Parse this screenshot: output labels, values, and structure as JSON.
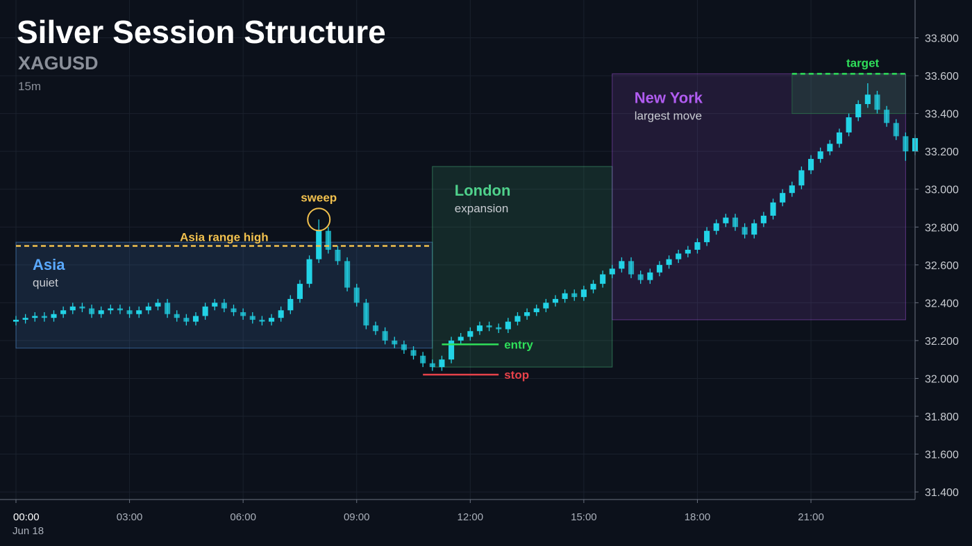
{
  "chart_data": {
    "type": "candlestick",
    "title": "Silver Session Structure",
    "symbol": "XAGUSD",
    "interval": "15m",
    "x_date_label": "Jun 18",
    "color": "#22d3e6",
    "grid": true,
    "xlim": [
      0,
      23.75
    ],
    "ylim": [
      31.36,
      34.0
    ],
    "xticks": [
      {
        "value": 0,
        "label": "00:00"
      },
      {
        "value": 3,
        "label": "03:00"
      },
      {
        "value": 6,
        "label": "06:00"
      },
      {
        "value": 9,
        "label": "09:00"
      },
      {
        "value": 12,
        "label": "12:00"
      },
      {
        "value": 15,
        "label": "15:00"
      },
      {
        "value": 18,
        "label": "18:00"
      },
      {
        "value": 21,
        "label": "21:00"
      }
    ],
    "yticks": [
      {
        "value": 31.4,
        "label": "31.400"
      },
      {
        "value": 31.6,
        "label": "31.600"
      },
      {
        "value": 31.8,
        "label": "31.800"
      },
      {
        "value": 32.0,
        "label": "32.000"
      },
      {
        "value": 32.2,
        "label": "32.200"
      },
      {
        "value": 32.4,
        "label": "32.400"
      },
      {
        "value": 32.6,
        "label": "32.600"
      },
      {
        "value": 32.8,
        "label": "32.800"
      },
      {
        "value": 33.0,
        "label": "33.000"
      },
      {
        "value": 33.2,
        "label": "33.200"
      },
      {
        "value": 33.4,
        "label": "33.400"
      },
      {
        "value": 33.6,
        "label": "33.600"
      },
      {
        "value": 33.8,
        "label": "33.800"
      }
    ],
    "x": [
      0,
      0.25,
      0.5,
      0.75,
      1,
      1.25,
      1.5,
      1.75,
      2,
      2.25,
      2.5,
      2.75,
      3,
      3.25,
      3.5,
      3.75,
      4,
      4.25,
      4.5,
      4.75,
      5,
      5.25,
      5.5,
      5.75,
      6,
      6.25,
      6.5,
      6.75,
      7,
      7.25,
      7.5,
      7.75,
      8,
      8.25,
      8.5,
      8.75,
      9,
      9.25,
      9.5,
      9.75,
      10,
      10.25,
      10.5,
      10.75,
      11,
      11.25,
      11.5,
      11.75,
      12,
      12.25,
      12.5,
      12.75,
      13,
      13.25,
      13.5,
      13.75,
      14,
      14.25,
      14.5,
      14.75,
      15,
      15.25,
      15.5,
      15.75,
      16,
      16.25,
      16.5,
      16.75,
      17,
      17.25,
      17.5,
      17.75,
      18,
      18.25,
      18.5,
      18.75,
      19,
      19.25,
      19.5,
      19.75,
      20,
      20.25,
      20.5,
      20.75,
      21,
      21.25,
      21.5,
      21.75,
      22,
      22.25,
      22.5,
      22.75,
      23,
      23.25,
      23.5,
      23.75
    ],
    "open": [
      32.3,
      32.31,
      32.32,
      32.33,
      32.32,
      32.34,
      32.36,
      32.38,
      32.37,
      32.34,
      32.36,
      32.37,
      32.36,
      32.34,
      32.36,
      32.38,
      32.4,
      32.34,
      32.32,
      32.3,
      32.33,
      32.38,
      32.4,
      32.37,
      32.35,
      32.33,
      32.31,
      32.3,
      32.32,
      32.36,
      32.42,
      32.5,
      32.63,
      32.78,
      32.68,
      32.62,
      32.48,
      32.4,
      32.28,
      32.25,
      32.2,
      32.18,
      32.15,
      32.12,
      32.08,
      32.06,
      32.1,
      32.2,
      32.22,
      32.25,
      32.28,
      32.27,
      32.26,
      32.3,
      32.33,
      32.35,
      32.37,
      32.4,
      32.42,
      32.45,
      32.43,
      32.47,
      32.5,
      32.55,
      32.58,
      32.62,
      32.55,
      32.52,
      32.56,
      32.6,
      32.63,
      32.66,
      32.68,
      32.72,
      32.78,
      32.82,
      32.85,
      32.8,
      32.76,
      32.82,
      32.86,
      32.93,
      32.98,
      33.02,
      33.1,
      33.16,
      33.2,
      33.24,
      33.3,
      33.38,
      33.45,
      33.5,
      33.42,
      33.35,
      33.28,
      33.2
    ],
    "high": [
      32.33,
      32.34,
      32.35,
      32.35,
      32.36,
      32.38,
      32.4,
      32.4,
      32.39,
      32.38,
      32.39,
      32.39,
      32.38,
      32.38,
      32.4,
      32.42,
      32.42,
      32.36,
      32.34,
      32.35,
      32.4,
      32.42,
      32.42,
      32.39,
      32.37,
      32.35,
      32.33,
      32.34,
      32.38,
      32.44,
      32.52,
      32.65,
      32.84,
      32.8,
      32.7,
      32.64,
      32.5,
      32.42,
      32.3,
      32.27,
      32.22,
      32.2,
      32.17,
      32.14,
      32.1,
      32.12,
      32.22,
      32.24,
      32.27,
      32.3,
      32.3,
      32.29,
      32.32,
      32.35,
      32.37,
      32.39,
      32.42,
      32.44,
      32.47,
      32.47,
      32.49,
      32.52,
      32.57,
      32.6,
      32.64,
      32.64,
      32.57,
      32.58,
      32.62,
      32.65,
      32.68,
      32.7,
      32.74,
      32.8,
      32.84,
      32.87,
      32.87,
      32.82,
      32.84,
      32.88,
      32.95,
      33.0,
      33.04,
      33.12,
      33.18,
      33.22,
      33.26,
      33.32,
      33.4,
      33.47,
      33.56,
      33.52,
      33.44,
      33.37,
      33.3,
      33.29
    ],
    "low": [
      32.28,
      32.29,
      32.3,
      32.3,
      32.3,
      32.32,
      32.34,
      32.35,
      32.32,
      32.32,
      32.34,
      32.34,
      32.32,
      32.32,
      32.34,
      32.36,
      32.32,
      32.3,
      32.28,
      32.28,
      32.31,
      32.36,
      32.35,
      32.33,
      32.31,
      32.29,
      32.28,
      32.28,
      32.3,
      32.34,
      32.4,
      32.48,
      32.61,
      32.66,
      32.6,
      32.46,
      32.38,
      32.26,
      32.23,
      32.18,
      32.16,
      32.13,
      32.1,
      32.06,
      32.04,
      32.04,
      32.08,
      32.18,
      32.2,
      32.23,
      32.25,
      32.24,
      32.24,
      32.28,
      32.31,
      32.33,
      32.35,
      32.38,
      32.4,
      32.41,
      32.41,
      32.45,
      32.48,
      32.53,
      32.56,
      32.53,
      32.5,
      32.5,
      32.54,
      32.58,
      32.61,
      32.64,
      32.66,
      32.7,
      32.76,
      32.8,
      32.78,
      32.74,
      32.74,
      32.8,
      32.84,
      32.91,
      32.96,
      33.0,
      33.08,
      33.14,
      33.18,
      33.22,
      33.28,
      33.36,
      33.43,
      33.4,
      33.33,
      33.26,
      33.15,
      33.18
    ],
    "close": [
      32.31,
      32.32,
      32.33,
      32.32,
      32.34,
      32.36,
      32.38,
      32.37,
      32.34,
      32.36,
      32.37,
      32.36,
      32.34,
      32.36,
      32.38,
      32.4,
      32.34,
      32.32,
      32.3,
      32.33,
      32.38,
      32.4,
      32.37,
      32.35,
      32.33,
      32.31,
      32.3,
      32.32,
      32.36,
      32.42,
      32.5,
      32.63,
      32.78,
      32.68,
      32.62,
      32.48,
      32.4,
      32.28,
      32.25,
      32.2,
      32.18,
      32.15,
      32.12,
      32.08,
      32.06,
      32.1,
      32.2,
      32.22,
      32.25,
      32.28,
      32.27,
      32.26,
      32.3,
      32.33,
      32.35,
      32.37,
      32.4,
      32.42,
      32.45,
      32.43,
      32.47,
      32.5,
      32.55,
      32.58,
      32.62,
      32.55,
      32.52,
      32.56,
      32.6,
      32.63,
      32.66,
      32.68,
      32.72,
      32.78,
      32.82,
      32.85,
      32.8,
      32.76,
      32.82,
      32.86,
      32.93,
      32.98,
      33.02,
      33.1,
      33.16,
      33.2,
      33.24,
      33.3,
      33.38,
      33.45,
      33.5,
      33.42,
      33.35,
      33.28,
      33.2,
      33.27
    ],
    "sessions": [
      {
        "name": "Asia",
        "note": "quiet",
        "start": 0,
        "end": 11,
        "low": 32.16,
        "high": 32.72,
        "color": "#5aa9ff"
      },
      {
        "name": "London",
        "note": "expansion",
        "start": 11,
        "end": 15.75,
        "low": 32.06,
        "high": 33.12,
        "color": "#4fd18b"
      },
      {
        "name": "New York",
        "note": "largest move",
        "start": 15.75,
        "end": 23.5,
        "low": 32.31,
        "high": 33.61,
        "color": "#b05cf0"
      }
    ],
    "levels": [
      {
        "label": "Asia range high",
        "value": 32.7,
        "start": 0,
        "end": 11,
        "color": "#f2c14e",
        "dashed": true
      },
      {
        "label": "entry",
        "value": 32.18,
        "start": 11.25,
        "end": 12.75,
        "color": "#2fe05a",
        "dashed": false
      },
      {
        "label": "stop",
        "value": 32.02,
        "start": 10.75,
        "end": 12.75,
        "color": "#e8424a",
        "dashed": false
      },
      {
        "label": "target",
        "value": 33.61,
        "start": 20.5,
        "end": 23.5,
        "color": "#2fe05a",
        "dashed": true
      }
    ],
    "target_zone": {
      "start": 20.5,
      "end": 23.5,
      "low": 33.4,
      "high": 33.61
    },
    "sweep": {
      "label": "sweep",
      "x": 8,
      "value": 32.84
    }
  }
}
